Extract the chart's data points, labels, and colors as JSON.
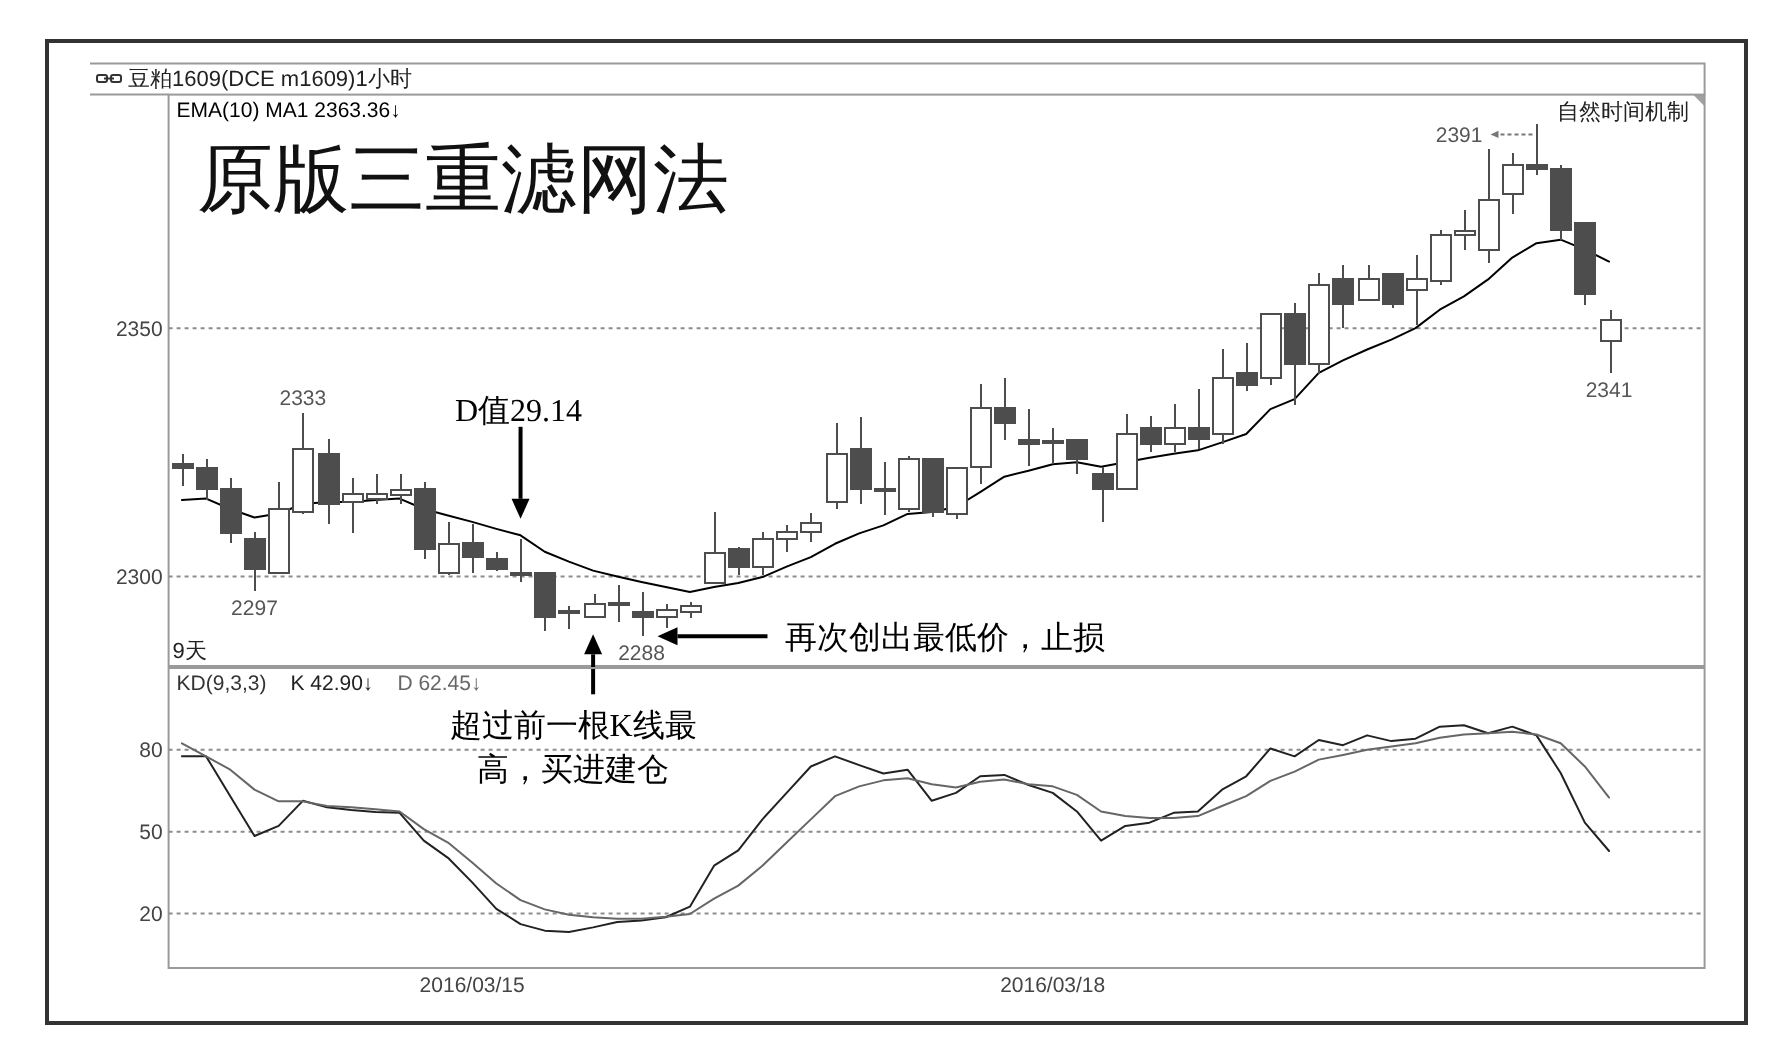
{
  "chart_data": [
    {
      "type": "candlestick",
      "title": "原版三重滤网法",
      "subtitle": "豆粕1609(DCE m1609)1小时",
      "categories": [
        null,
        null,
        null,
        null,
        null,
        null,
        null,
        null,
        null,
        null,
        null,
        null,
        null,
        null,
        null,
        null,
        null,
        null,
        null,
        null,
        null,
        null,
        null,
        null,
        null,
        null,
        null,
        null,
        null,
        null,
        null,
        null,
        null,
        null,
        null,
        null,
        null,
        null,
        null,
        null,
        null,
        null,
        null,
        null,
        null,
        null,
        null,
        null,
        null,
        null,
        null,
        null,
        null,
        null,
        null,
        null,
        null,
        null,
        null,
        null
      ],
      "ohlc": [
        [
          2322.7,
          2324.6,
          2318.3,
          2321.8
        ],
        [
          2321.9,
          2323.7,
          2315.4,
          2317.7
        ],
        [
          2317.7,
          2319.9,
          2306.7,
          2308.7
        ],
        [
          2307.6,
          2309.0,
          2297,
          2301.6
        ],
        [
          2300.7,
          2319.0,
          2300.5,
          2313.6
        ],
        [
          2313.0,
          2333,
          2312.5,
          2325.7
        ],
        [
          2324.7,
          2327.7,
          2310.6,
          2314.6
        ],
        [
          2315.0,
          2319.9,
          2308.7,
          2316.7
        ],
        [
          2315.7,
          2320.7,
          2314.6,
          2316.7
        ],
        [
          2316.5,
          2320.7,
          2314.6,
          2317.5
        ],
        [
          2317.7,
          2319.0,
          2303.6,
          2305.6
        ],
        [
          2300.7,
          2311.0,
          2300.3,
          2306.6
        ],
        [
          2306.7,
          2310.6,
          2300.7,
          2303.9
        ],
        [
          2303.6,
          2305.0,
          2301.2,
          2301.6
        ],
        [
          2300.7,
          2307.6,
          2298.9,
          2300.7
        ],
        [
          2300.7,
          2300.9,
          2289,
          2291.9
        ],
        [
          2292.9,
          2294.0,
          2289.5,
          2292.9
        ],
        [
          2291.9,
          2296.5,
          2291.6,
          2294.5
        ],
        [
          2294.5,
          2298.3,
          2290.9,
          2294.5
        ],
        [
          2292.9,
          2296.9,
          2288,
          2291.9
        ],
        [
          2291.9,
          2294.5,
          2289.6,
          2293.2
        ],
        [
          2292.9,
          2294.9,
          2291.6,
          2294.0
        ],
        [
          2298.8,
          2313.0,
          2298.5,
          2304.7
        ],
        [
          2305.6,
          2306.0,
          2300.3,
          2301.9
        ],
        [
          2301.9,
          2309.0,
          2300.3,
          2307.6
        ],
        [
          2307.6,
          2310.3,
          2305.0,
          2309.0
        ],
        [
          2309.0,
          2312.7,
          2307.0,
          2310.7
        ],
        [
          2315.0,
          2331.0,
          2313.6,
          2324.7
        ],
        [
          2325.7,
          2332.1,
          2314.6,
          2317.7
        ],
        [
          2317.7,
          2323.0,
          2312.3,
          2317.7
        ],
        [
          2313.6,
          2324.3,
          2313.0,
          2323.7
        ],
        [
          2323.7,
          2323.9,
          2311.9,
          2313.0
        ],
        [
          2312.6,
          2322.1,
          2311.6,
          2321.9
        ],
        [
          2322.1,
          2338.8,
          2318.7,
          2334.0
        ],
        [
          2334.0,
          2340.0,
          2327.4,
          2331.0
        ],
        [
          2327.4,
          2333.7,
          2322.3,
          2326.7
        ],
        [
          2327.4,
          2330.0,
          2322.7,
          2327.4
        ],
        [
          2327.4,
          2327.6,
          2320.7,
          2323.7
        ],
        [
          2320.7,
          2322.1,
          2311.0,
          2317.7
        ],
        [
          2317.7,
          2332.7,
          2317.5,
          2328.6
        ],
        [
          2330.0,
          2332.4,
          2325.0,
          2326.7
        ],
        [
          2326.7,
          2334.8,
          2325.0,
          2330.0
        ],
        [
          2330.0,
          2337.7,
          2325.7,
          2327.7
        ],
        [
          2328.7,
          2345.7,
          2326.6,
          2340.0
        ],
        [
          2341.0,
          2347.1,
          2337.4,
          2338.6
        ],
        [
          2340.0,
          2353.0,
          2338.6,
          2352.8
        ],
        [
          2352.8,
          2355.1,
          2334.6,
          2342.8
        ],
        [
          2342.8,
          2361.1,
          2340.8,
          2358.7
        ],
        [
          2359.8,
          2362.7,
          2350.0,
          2354.8
        ],
        [
          2355.7,
          2362.8,
          2355.5,
          2359.8
        ],
        [
          2360.8,
          2361.1,
          2354.1,
          2354.8
        ],
        [
          2357.6,
          2364.8,
          2350.7,
          2359.8
        ],
        [
          2359.5,
          2369.8,
          2358.7,
          2368.8
        ],
        [
          2368.7,
          2373.8,
          2365.8,
          2369.5
        ],
        [
          2365.8,
          2386.1,
          2363.1,
          2375.8
        ],
        [
          2376.9,
          2385.2,
          2372.9,
          2382.9
        ],
        [
          2382.9,
          2391,
          2380.9,
          2382.1
        ],
        [
          2382.1,
          2382.9,
          2367.8,
          2369.8
        ],
        [
          2371.1,
          2371.3,
          2354.7,
          2356.8
        ],
        [
          2347.5,
          2353.7,
          2341,
          2351.7
        ]
      ],
      "color": "#4d4d4d",
      "series": [
        {
          "type": "line",
          "name": "EMA(10) MA1 2363.36↓",
          "color": "#000000",
          "values": [
            2315.4,
            2315.7,
            2313.6,
            2311.9,
            2312.7,
            2314.6,
            2315.0,
            2315.0,
            2315.4,
            2315.7,
            2313.6,
            2312.3,
            2311.0,
            2309.6,
            2308.3,
            2305.0,
            2303.0,
            2301.2,
            2300.0,
            2298.9,
            2297.9,
            2296.9,
            2297.9,
            2298.7,
            2299.9,
            2302.0,
            2303.9,
            2306.6,
            2308.7,
            2310.3,
            2312.6,
            2313.0,
            2314.0,
            2317.0,
            2320.1,
            2321.3,
            2322.6,
            2323.0,
            2322.1,
            2323.0,
            2323.9,
            2324.7,
            2325.4,
            2327.0,
            2328.7,
            2333.7,
            2335.7,
            2341.0,
            2343.5,
            2345.7,
            2347.7,
            2350.0,
            2353.7,
            2356.4,
            2359.8,
            2364.2,
            2367.1,
            2367.8,
            2365.8,
            2363.4
          ]
        }
      ],
      "ylim": [
        2282,
        2397
      ],
      "yticks": [
        2300,
        2350
      ],
      "grid": "y",
      "legend": "top left",
      "tick_labels": "y",
      "annotations": [
        "自然时间机制",
        "9天",
        "D值29.14",
        "超过前一根K线最高，买进建仓",
        "再次创出最低价，止损",
        "2391",
        {
          "text": "2333",
          "y": 2333
        },
        {
          "text": "2297",
          "y": 2297
        },
        {
          "text": "2288",
          "y": 2288
        },
        {
          "text": "2341",
          "y": 2341
        }
      ]
    },
    {
      "type": "line",
      "legend_title": "KD(9,3,3)",
      "categories": [
        null,
        null,
        null,
        null,
        null,
        null,
        null,
        null,
        null,
        null,
        null,
        null,
        "2016/03/15",
        null,
        null,
        null,
        null,
        null,
        null,
        null,
        null,
        null,
        null,
        null,
        null,
        null,
        null,
        null,
        null,
        null,
        null,
        null,
        null,
        null,
        null,
        null,
        "2016/03/18",
        null,
        null,
        null,
        null,
        null,
        null,
        null,
        null,
        null,
        null,
        null,
        null,
        null,
        null,
        null,
        null,
        null,
        null,
        null,
        null,
        null,
        null,
        null
      ],
      "series": [
        {
          "name": "K 42.90↓",
          "color": "#222222",
          "values": [
            77.6,
            77.6,
            63.0,
            48.4,
            52.1,
            61.3,
            58.9,
            57.9,
            57.2,
            56.9,
            46.7,
            40.4,
            31.4,
            21.7,
            16.1,
            13.7,
            13.2,
            14.9,
            16.9,
            17.4,
            18.6,
            22.5,
            37.5,
            43.1,
            54.5,
            64.2,
            73.9,
            77.6,
            74.4,
            71.3,
            72.7,
            61.3,
            64.2,
            70.3,
            70.8,
            67.1,
            64.2,
            57.4,
            46.7,
            52.1,
            53.3,
            56.9,
            57.4,
            65.4,
            70.3,
            80.5,
            77.6,
            83.6,
            81.7,
            85.3,
            83.2,
            84.1,
            88.5,
            89.0,
            86.1,
            88.5,
            85.3,
            71.5,
            53.3,
            42.9
          ]
        },
        {
          "name": "D 62.45↓",
          "color": "#666666",
          "values": [
            82.4,
            77.6,
            72.7,
            65.4,
            61.1,
            61.1,
            59.4,
            58.9,
            58.2,
            57.4,
            50.9,
            46.0,
            38.7,
            31.0,
            24.9,
            21.5,
            19.5,
            18.6,
            18.1,
            18.1,
            18.8,
            19.8,
            25.4,
            30.2,
            37.5,
            46.0,
            54.5,
            63.0,
            66.6,
            68.8,
            69.6,
            67.4,
            66.2,
            68.3,
            69.1,
            67.4,
            66.6,
            63.5,
            57.4,
            55.7,
            55.0,
            55.0,
            55.7,
            59.4,
            63.0,
            68.6,
            72.0,
            76.4,
            78.1,
            80.0,
            81.2,
            82.4,
            84.4,
            85.6,
            86.1,
            86.6,
            85.6,
            82.4,
            73.9,
            62.5
          ]
        }
      ],
      "ylim": [
        0,
        110
      ],
      "yticks": [
        20,
        50,
        80
      ],
      "grid": "y",
      "legend": "top left"
    }
  ]
}
